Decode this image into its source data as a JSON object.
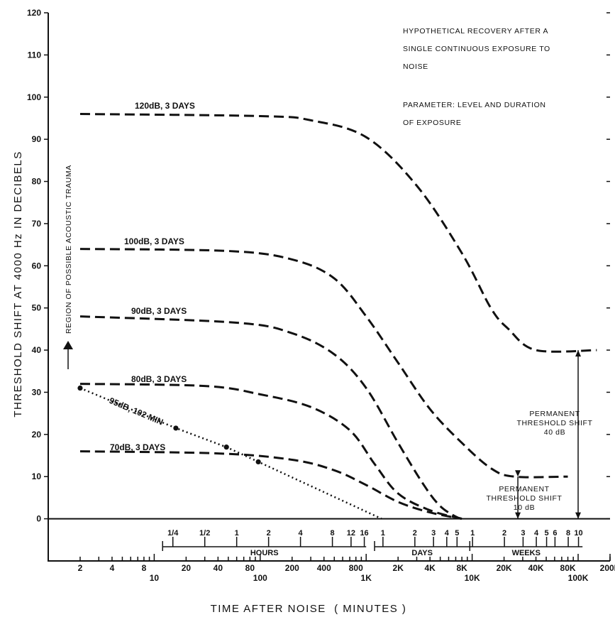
{
  "chart_data": {
    "type": "line",
    "title_lines": [
      "HYPOTHETICAL RECOVERY AFTER A",
      "SINGLE CONTINUOUS EXPOSURE TO",
      "NOISE"
    ],
    "parameter_lines": [
      "PARAMETER: LEVEL AND DURATION",
      "OF EXPOSURE"
    ],
    "xlabel": "TIME AFTER NOISE  ( MINUTES )",
    "ylabel": "THRESHOLD SHIFT AT 4000 Hz IN DECIBELS",
    "x_scale": "log",
    "xlim": [
      1,
      200000
    ],
    "ylim": [
      -10,
      120
    ],
    "grid": false,
    "y_ticks": [
      0,
      10,
      20,
      30,
      40,
      50,
      60,
      70,
      80,
      90,
      100,
      110,
      120
    ],
    "x_tick_labels_upper": [
      {
        "v": 2,
        "t": "2"
      },
      {
        "v": 4,
        "t": "4"
      },
      {
        "v": 8,
        "t": "8"
      },
      {
        "v": 20,
        "t": "20"
      },
      {
        "v": 40,
        "t": "40"
      },
      {
        "v": 80,
        "t": "80"
      },
      {
        "v": 200,
        "t": "200"
      },
      {
        "v": 400,
        "t": "400"
      },
      {
        "v": 800,
        "t": "800"
      },
      {
        "v": 2000,
        "t": "2K"
      },
      {
        "v": 4000,
        "t": "4K"
      },
      {
        "v": 8000,
        "t": "8K"
      },
      {
        "v": 20000,
        "t": "20K"
      },
      {
        "v": 40000,
        "t": "40K"
      },
      {
        "v": 80000,
        "t": "80K"
      },
      {
        "v": 200000,
        "t": "200K"
      }
    ],
    "x_tick_labels_lower": [
      {
        "v": 10,
        "t": "10"
      },
      {
        "v": 100,
        "t": "100"
      },
      {
        "v": 1000,
        "t": "1K"
      },
      {
        "v": 10000,
        "t": "10K"
      },
      {
        "v": 100000,
        "t": "100K"
      }
    ],
    "time_scales": [
      {
        "name": "HOURS",
        "range": [
          12,
          1000
        ],
        "ticks": [
          {
            "v": 15,
            "t": "1/4"
          },
          {
            "v": 30,
            "t": "1/2"
          },
          {
            "v": 60,
            "t": "1"
          },
          {
            "v": 120,
            "t": "2"
          },
          {
            "v": 240,
            "t": "4"
          },
          {
            "v": 480,
            "t": "8"
          },
          {
            "v": 720,
            "t": "12"
          },
          {
            "v": 960,
            "t": "16"
          }
        ]
      },
      {
        "name": "DAYS",
        "range": [
          1200,
          9500
        ],
        "ticks": [
          {
            "v": 1440,
            "t": "1"
          },
          {
            "v": 2880,
            "t": "2"
          },
          {
            "v": 4320,
            "t": "3"
          },
          {
            "v": 5760,
            "t": "4"
          },
          {
            "v": 7200,
            "t": "5"
          }
        ]
      },
      {
        "name": "WEEKS",
        "range": [
          9500,
          110000
        ],
        "ticks": [
          {
            "v": 10080,
            "t": "1"
          },
          {
            "v": 20160,
            "t": "2"
          },
          {
            "v": 30240,
            "t": "3"
          },
          {
            "v": 40320,
            "t": "4"
          },
          {
            "v": 50400,
            "t": "5"
          },
          {
            "v": 60480,
            "t": "6"
          },
          {
            "v": 80640,
            "t": "8"
          },
          {
            "v": 100800,
            "t": "10"
          }
        ]
      }
    ],
    "series": [
      {
        "name": "120dB, 3 DAYS",
        "style": "dashed",
        "points": [
          [
            2,
            96
          ],
          [
            100,
            95.5
          ],
          [
            300,
            94.5
          ],
          [
            1000,
            90.5
          ],
          [
            3000,
            79
          ],
          [
            8000,
            63
          ],
          [
            15000,
            50
          ],
          [
            22000,
            45
          ],
          [
            40000,
            40
          ],
          [
            150000,
            40
          ]
        ]
      },
      {
        "name": "100dB, 3 DAYS",
        "style": "dashed",
        "points": [
          [
            2,
            64
          ],
          [
            50,
            63.5
          ],
          [
            200,
            61.5
          ],
          [
            500,
            57
          ],
          [
            1000,
            48
          ],
          [
            2000,
            37
          ],
          [
            4000,
            26
          ],
          [
            8000,
            18
          ],
          [
            15000,
            12
          ],
          [
            25000,
            10
          ],
          [
            80000,
            10
          ]
        ]
      },
      {
        "name": "90dB, 3 DAYS",
        "style": "dashed",
        "points": [
          [
            2,
            48
          ],
          [
            60,
            46.5
          ],
          [
            200,
            44
          ],
          [
            500,
            39
          ],
          [
            1000,
            31
          ],
          [
            2000,
            18
          ],
          [
            3500,
            8
          ],
          [
            5000,
            3
          ],
          [
            7000,
            0.5
          ],
          [
            8000,
            0
          ]
        ]
      },
      {
        "name": "80dB, 3 DAYS",
        "style": "dashed",
        "points": [
          [
            2,
            32
          ],
          [
            30,
            31.5
          ],
          [
            100,
            29.5
          ],
          [
            300,
            26.5
          ],
          [
            700,
            21
          ],
          [
            1200,
            13
          ],
          [
            2000,
            6
          ],
          [
            4000,
            2
          ],
          [
            8000,
            0
          ]
        ]
      },
      {
        "name": "70dB, 3 DAYS",
        "style": "dashed",
        "points": [
          [
            2,
            16
          ],
          [
            40,
            15.5
          ],
          [
            200,
            14
          ],
          [
            500,
            11.5
          ],
          [
            1000,
            8
          ],
          [
            2000,
            4
          ],
          [
            4000,
            1.5
          ],
          [
            8000,
            0
          ]
        ]
      },
      {
        "name": "95dB, 102 MIN",
        "style": "dotted",
        "markers": true,
        "points": [
          [
            2,
            31
          ],
          [
            16,
            21.5
          ],
          [
            48,
            17
          ],
          [
            96,
            13.5
          ],
          [
            1400,
            0
          ]
        ]
      }
    ],
    "annotations": {
      "region": "REGION OF POSSIBLE ACOUSTIC TRAUMA",
      "pts_40_lines": [
        "PERMANENT",
        "THRESHOLD SHIFT",
        "40 dB"
      ],
      "pts_10_lines": [
        "PERMANENT",
        "THRESHOLD SHIFT",
        "10 dB"
      ]
    }
  }
}
